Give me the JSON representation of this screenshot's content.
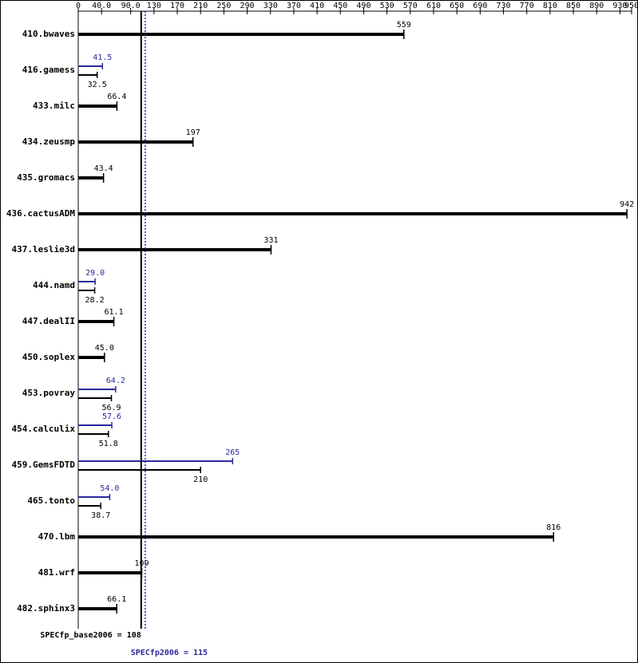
{
  "chart_data": {
    "type": "bar",
    "categories": [
      "410.bwaves",
      "416.gamess",
      "433.milc",
      "434.zeusmp",
      "435.gromacs",
      "436.cactusADM",
      "437.leslie3d",
      "444.namd",
      "447.dealII",
      "450.soplex",
      "453.povray",
      "454.calculix",
      "459.GemsFDTD",
      "465.tonto",
      "470.lbm",
      "481.wrf",
      "482.sphinx3"
    ],
    "series": [
      {
        "color": "#000000",
        "values": [
          559,
          32.5,
          66.4,
          197,
          43.4,
          942,
          331,
          28.2,
          61.1,
          45.0,
          56.9,
          51.8,
          210,
          38.7,
          816,
          109,
          66.1
        ],
        "value_labels": [
          "559",
          "32.5",
          "66.4",
          "197",
          "43.4",
          "942",
          "331",
          "28.2",
          "61.1",
          "45.0",
          "56.9",
          "51.8",
          "210",
          "38.7",
          "816",
          "109",
          "66.1"
        ]
      },
      {
        "color": "#2a2a9c",
        "values": [
          null,
          41.5,
          null,
          null,
          null,
          null,
          null,
          29.0,
          null,
          null,
          64.2,
          57.6,
          265,
          54.0,
          null,
          null,
          null
        ],
        "value_labels": [
          null,
          "41.5",
          null,
          null,
          null,
          null,
          null,
          "29.0",
          null,
          null,
          "64.2",
          "57.6",
          "265",
          "54.0",
          null,
          null,
          null
        ]
      }
    ],
    "xlim": [
      0,
      950
    ],
    "xticks": [
      0,
      {
        "value": 40,
        "label": "40.0"
      },
      {
        "value": 90,
        "label": "90.0"
      },
      130,
      170,
      210,
      250,
      290,
      330,
      370,
      410,
      450,
      490,
      530,
      570,
      610,
      650,
      690,
      730,
      770,
      810,
      850,
      890,
      930,
      950
    ],
    "reference_lines": [
      {
        "text": "SPECfp_base2006 = 108",
        "value": 108,
        "color": "#000000",
        "dash": false
      },
      {
        "text": "SPECfp2006 = 115",
        "value": 115,
        "color": "#2a2a9c",
        "dash": true
      }
    ]
  }
}
